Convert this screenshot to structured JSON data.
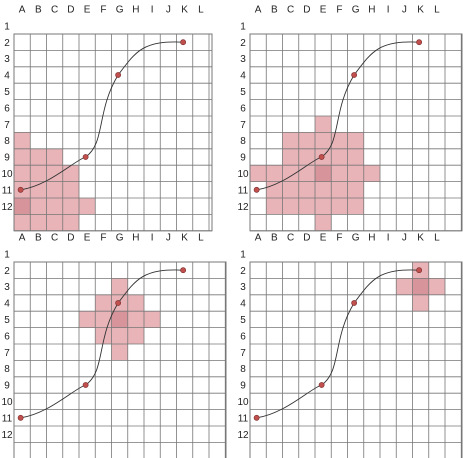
{
  "columns": [
    "A",
    "B",
    "C",
    "D",
    "E",
    "F",
    "G",
    "H",
    "I",
    "J",
    "K",
    "L"
  ],
  "rows": [
    "1",
    "2",
    "3",
    "4",
    "5",
    "6",
    "7",
    "8",
    "9",
    "10",
    "11",
    "12"
  ],
  "colors": {
    "grid_line": "#777777",
    "highlight_fill": "#e8b4b8",
    "highlight_dark": "#d7959b",
    "curve": "#333333",
    "point_fill": "#c0504d",
    "point_stroke": "#7a2a2a"
  },
  "curve_points": [
    {
      "col": "A",
      "row": 11
    },
    {
      "col": "E",
      "row": 9
    },
    {
      "col": "G",
      "row": 4
    },
    {
      "col": "K",
      "row": 2
    }
  ],
  "panels": [
    {
      "name": "panel-top-left",
      "shaded": [
        [
          "A",
          7
        ],
        [
          "A",
          8
        ],
        [
          "B",
          8
        ],
        [
          "C",
          8
        ],
        [
          "A",
          9
        ],
        [
          "B",
          9
        ],
        [
          "C",
          9
        ],
        [
          "D",
          9
        ],
        [
          "A",
          10
        ],
        [
          "B",
          10
        ],
        [
          "C",
          10
        ],
        [
          "D",
          10
        ],
        [
          "A",
          11
        ],
        [
          "B",
          11
        ],
        [
          "C",
          11
        ],
        [
          "D",
          11
        ],
        [
          "E",
          11
        ],
        [
          "A",
          12
        ],
        [
          "B",
          12
        ],
        [
          "C",
          12
        ],
        [
          "D",
          12
        ]
      ],
      "dark": [
        [
          "A",
          11
        ]
      ]
    },
    {
      "name": "panel-top-right",
      "shaded": [
        [
          "E",
          6
        ],
        [
          "C",
          7
        ],
        [
          "D",
          7
        ],
        [
          "E",
          7
        ],
        [
          "F",
          7
        ],
        [
          "G",
          7
        ],
        [
          "C",
          8
        ],
        [
          "D",
          8
        ],
        [
          "E",
          8
        ],
        [
          "F",
          8
        ],
        [
          "G",
          8
        ],
        [
          "A",
          9
        ],
        [
          "B",
          9
        ],
        [
          "C",
          9
        ],
        [
          "D",
          9
        ],
        [
          "E",
          9
        ],
        [
          "F",
          9
        ],
        [
          "G",
          9
        ],
        [
          "H",
          9
        ],
        [
          "B",
          10
        ],
        [
          "C",
          10
        ],
        [
          "D",
          10
        ],
        [
          "E",
          10
        ],
        [
          "F",
          10
        ],
        [
          "G",
          10
        ],
        [
          "B",
          11
        ],
        [
          "C",
          11
        ],
        [
          "D",
          11
        ],
        [
          "E",
          11
        ],
        [
          "F",
          11
        ],
        [
          "G",
          11
        ],
        [
          "E",
          12
        ]
      ],
      "dark": [
        [
          "E",
          9
        ]
      ]
    },
    {
      "name": "panel-bottom-left",
      "shaded": [
        [
          "G",
          2
        ],
        [
          "F",
          3
        ],
        [
          "G",
          3
        ],
        [
          "H",
          3
        ],
        [
          "E",
          4
        ],
        [
          "F",
          4
        ],
        [
          "G",
          4
        ],
        [
          "H",
          4
        ],
        [
          "I",
          4
        ],
        [
          "F",
          5
        ],
        [
          "G",
          5
        ],
        [
          "H",
          5
        ],
        [
          "G",
          6
        ]
      ],
      "dark": [
        [
          "G",
          4
        ]
      ]
    },
    {
      "name": "panel-bottom-right",
      "shaded": [
        [
          "K",
          1
        ],
        [
          "J",
          2
        ],
        [
          "K",
          2
        ],
        [
          "L",
          2
        ],
        [
          "K",
          3
        ]
      ],
      "dark": [
        [
          "K",
          2
        ]
      ]
    }
  ]
}
